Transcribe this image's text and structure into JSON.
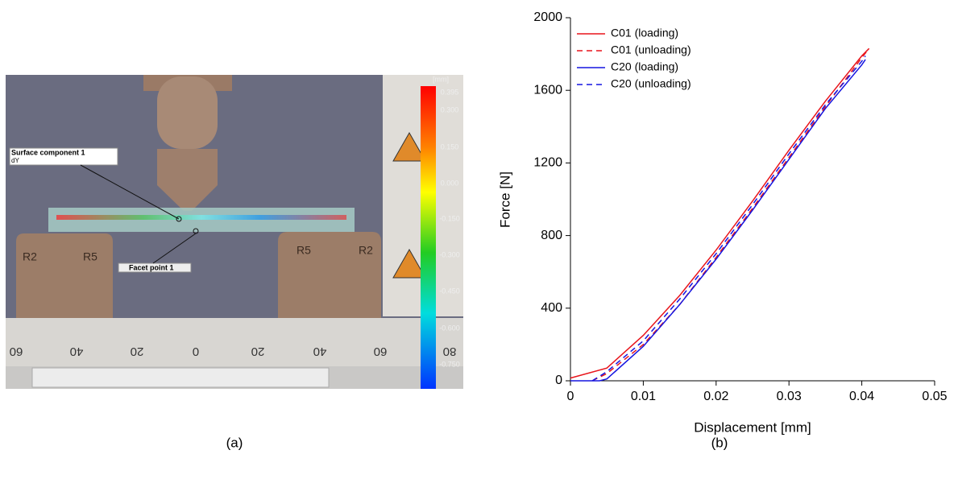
{
  "panel_a": {
    "caption": "(a)",
    "surface_label": "Surface component 1",
    "surface_quantity": "dY",
    "facet_label": "Facet point 1",
    "support_labels": [
      "R2",
      "R5",
      "R5",
      "R2"
    ],
    "colorbar_unit": "[mm]",
    "colorbar_labels": [
      "0.395",
      "0.300",
      "0.150",
      "0.000",
      "-0.150",
      "-0.300",
      "-0.450",
      "-0.600",
      "-0.750"
    ],
    "ruler_labels": [
      "60",
      "40",
      "20",
      "0",
      "20",
      "40",
      "60",
      "80"
    ]
  },
  "chart_data": {
    "type": "line",
    "caption": "(b)",
    "xlabel": "Displacement [mm]",
    "ylabel": "Force [N]",
    "xlim": [
      0,
      0.05
    ],
    "ylim": [
      0,
      2000
    ],
    "xticks": [
      0,
      0.01,
      0.02,
      0.03,
      0.04,
      0.05
    ],
    "yticks": [
      0,
      400,
      800,
      1200,
      1600,
      2000
    ],
    "legend": "upper left",
    "series": [
      {
        "name": "C01 (loading)",
        "color": "#e8141b",
        "linestyle": "solid",
        "x": [
          0,
          0.005,
          0.01,
          0.015,
          0.02,
          0.025,
          0.03,
          0.035,
          0.04,
          0.041
        ],
        "values": [
          15,
          70,
          250,
          470,
          720,
          990,
          1270,
          1540,
          1790,
          1830
        ]
      },
      {
        "name": "C01 (unloading)",
        "color": "#e8141b",
        "linestyle": "dashed",
        "x": [
          0.003,
          0.005,
          0.01,
          0.015,
          0.02,
          0.025,
          0.03,
          0.035,
          0.04,
          0.041
        ],
        "values": [
          0,
          40,
          200,
          420,
          680,
          950,
          1230,
          1510,
          1780,
          1830
        ]
      },
      {
        "name": "C20 (loading)",
        "color": "#1515e0",
        "linestyle": "solid",
        "x": [
          0,
          0.004,
          0.005,
          0.01,
          0.015,
          0.02,
          0.025,
          0.03,
          0.035,
          0.04,
          0.0405
        ],
        "values": [
          0,
          0,
          10,
          190,
          420,
          670,
          940,
          1220,
          1500,
          1740,
          1770
        ]
      },
      {
        "name": "C20 (unloading)",
        "color": "#1515e0",
        "linestyle": "dashed",
        "x": [
          0.003,
          0.005,
          0.01,
          0.015,
          0.02,
          0.025,
          0.03,
          0.035,
          0.04,
          0.0405
        ],
        "values": [
          0,
          50,
          220,
          450,
          700,
          970,
          1250,
          1520,
          1760,
          1790
        ]
      }
    ]
  }
}
